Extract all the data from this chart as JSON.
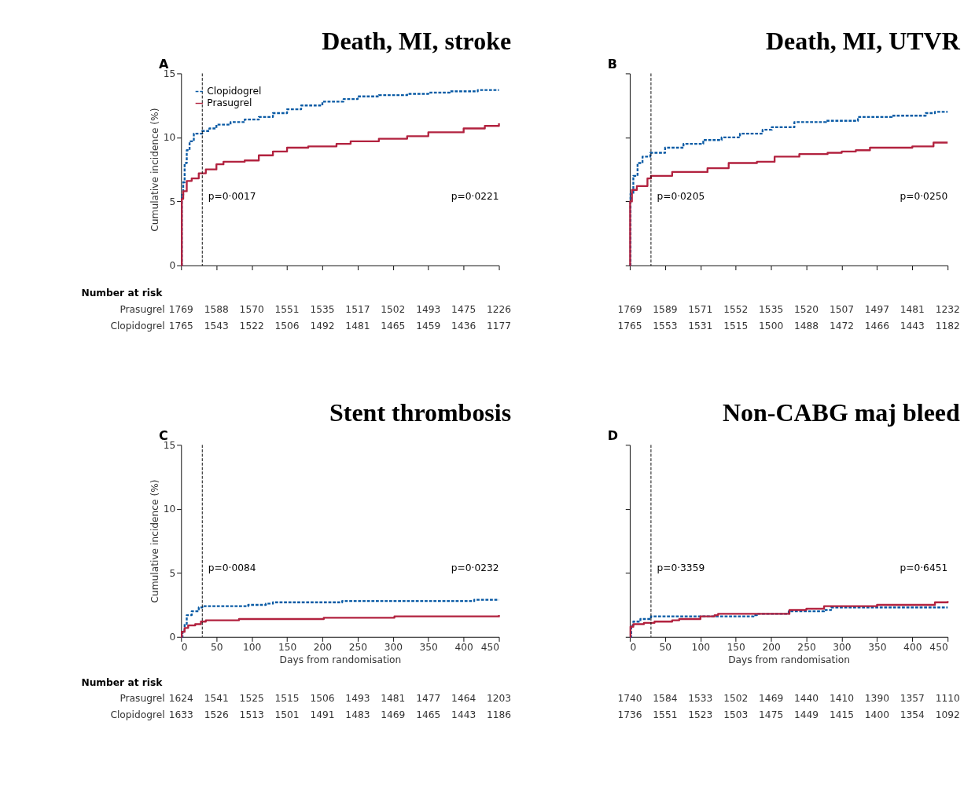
{
  "chart_data": [
    {
      "type": "step",
      "title": "Death, MI, stroke",
      "ylabel": "Cumulative incidence (%)",
      "xlim": [
        0,
        450
      ],
      "xticks": [
        0,
        50,
        100,
        150,
        200,
        250,
        300,
        350,
        400,
        450
      ],
      "ylim": [
        0,
        15
      ],
      "yticks": [
        0,
        5,
        10,
        15
      ],
      "tick_labels": "y",
      "legend": "top left",
      "grid": false,
      "ref_lines": [
        {
          "axis": "x",
          "value": 30,
          "line_style": "dashed",
          "color": "#000000"
        }
      ],
      "annotations": [
        "A",
        "p=0·0017",
        "p=0·0221",
        "Number at risk",
        "Prasugrel",
        "Clopidogrel",
        "1769",
        "1588",
        "1570",
        "1551",
        "1535",
        "1517",
        "1502",
        "1493",
        "1475",
        "1226",
        "1765",
        "1543",
        "1522",
        "1506",
        "1492",
        "1481",
        "1465",
        "1459",
        "1436",
        "1177"
      ],
      "series": [
        {
          "name": "Clopidogrel",
          "color": "#0a5ba5",
          "line_style": "dashed",
          "x": [
            0,
            1,
            3,
            5,
            8,
            12,
            18,
            30,
            40,
            50,
            70,
            90,
            110,
            130,
            150,
            170,
            200,
            230,
            250,
            280,
            320,
            350,
            380,
            420,
            450
          ],
          "values": [
            0,
            5.5,
            6.5,
            8,
            9,
            9.7,
            10.3,
            10.5,
            10.7,
            11,
            11.2,
            11.4,
            11.6,
            11.9,
            12.2,
            12.5,
            12.8,
            13,
            13.2,
            13.3,
            13.4,
            13.5,
            13.6,
            13.7,
            13.7
          ]
        },
        {
          "name": "Prasugrel",
          "color": "#b2223f",
          "line_style": "solid",
          "x": [
            0,
            1,
            3,
            8,
            15,
            25,
            35,
            50,
            60,
            90,
            110,
            130,
            150,
            180,
            220,
            240,
            280,
            320,
            350,
            400,
            430,
            450
          ],
          "values": [
            0,
            5.2,
            5.8,
            6.6,
            6.8,
            7.2,
            7.5,
            7.9,
            8.1,
            8.2,
            8.6,
            8.9,
            9.2,
            9.3,
            9.5,
            9.7,
            9.9,
            10.1,
            10.4,
            10.7,
            10.9,
            11.1
          ]
        }
      ]
    },
    {
      "type": "step",
      "title": "Death, MI, UTVR",
      "xlim": [
        0,
        450
      ],
      "xticks": [
        0,
        50,
        100,
        150,
        200,
        250,
        300,
        350,
        400,
        450
      ],
      "ylim": [
        0,
        15
      ],
      "yticks": [
        0,
        5,
        10,
        15
      ],
      "tick_labels": false,
      "grid": false,
      "ref_lines": [
        {
          "axis": "x",
          "value": 30,
          "line_style": "dashed",
          "color": "#000000"
        }
      ],
      "annotations": [
        "B",
        "p=0·0205",
        "p=0·0250",
        "1769",
        "1589",
        "1571",
        "1552",
        "1535",
        "1520",
        "1507",
        "1497",
        "1481",
        "1232",
        "1765",
        "1553",
        "1531",
        "1515",
        "1500",
        "1488",
        "1472",
        "1466",
        "1443",
        "1182"
      ],
      "series": [
        {
          "color": "#0a5ba5",
          "line_style": "dashed",
          "x": [
            0,
            1,
            5,
            11,
            18,
            29,
            50,
            76,
            104,
            130,
            156,
            188,
            201,
            233,
            278,
            323,
            371,
            419,
            432,
            450
          ],
          "values": [
            0,
            5.6,
            7.0,
            8.0,
            8.5,
            8.8,
            9.2,
            9.5,
            9.8,
            10.0,
            10.3,
            10.6,
            10.8,
            11.2,
            11.3,
            11.6,
            11.7,
            11.9,
            12.0,
            12.0
          ]
        },
        {
          "color": "#b2223f",
          "line_style": "solid",
          "x": [
            0,
            0.5,
            3,
            10,
            25,
            30,
            60,
            95,
            110,
            140,
            180,
            205,
            240,
            280,
            300,
            320,
            340,
            400,
            430,
            450
          ],
          "values": [
            0,
            5,
            5.9,
            6.2,
            6.8,
            7.0,
            7.3,
            7.3,
            7.6,
            8.0,
            8.1,
            8.5,
            8.7,
            8.8,
            8.9,
            9.0,
            9.2,
            9.3,
            9.6,
            9.6
          ]
        }
      ]
    },
    {
      "type": "step",
      "title": "Stent thrombosis",
      "ylabel": "Cumulative incidence (%)",
      "xlabel": "Days from randomisation",
      "xlim": [
        0,
        450
      ],
      "xticks": [
        0,
        50,
        100,
        150,
        200,
        250,
        300,
        350,
        400,
        450
      ],
      "ylim": [
        0,
        15
      ],
      "yticks": [
        0,
        5,
        10,
        15
      ],
      "grid": false,
      "ref_lines": [
        {
          "axis": "x",
          "value": 30,
          "line_style": "dashed",
          "color": "#000000"
        }
      ],
      "annotations": [
        "C",
        "p=0·0084",
        "p=0·0232",
        "Number at risk",
        "Prasugrel",
        "Clopidogrel",
        "1624",
        "1541",
        "1525",
        "1515",
        "1506",
        "1493",
        "1481",
        "1477",
        "1464",
        "1203",
        "1633",
        "1526",
        "1513",
        "1501",
        "1491",
        "1483",
        "1469",
        "1465",
        "1443",
        "1186"
      ],
      "series": [
        {
          "color": "#0a5ba5",
          "line_style": "dashed",
          "x": [
            0,
            2,
            5,
            8,
            15,
            25,
            30,
            90,
            95,
            120,
            130,
            225,
            228,
            410,
            415,
            450
          ],
          "values": [
            0,
            0.5,
            1,
            1.7,
            2,
            2.3,
            2.4,
            2.4,
            2.5,
            2.6,
            2.7,
            2.7,
            2.8,
            2.8,
            2.9,
            2.9
          ]
        },
        {
          "color": "#b2223f",
          "line_style": "solid",
          "x": [
            0,
            1,
            5,
            10,
            20,
            28,
            35,
            80,
            82,
            200,
            202,
            300,
            302,
            450
          ],
          "values": [
            0,
            0.4,
            0.7,
            0.9,
            1.0,
            1.2,
            1.3,
            1.3,
            1.4,
            1.4,
            1.5,
            1.5,
            1.6,
            1.7
          ]
        }
      ]
    },
    {
      "type": "step",
      "title": "Non-CABG maj bleed",
      "xlabel": "Days from randomisation",
      "xlim": [
        0,
        450
      ],
      "xticks": [
        0,
        50,
        100,
        150,
        200,
        250,
        300,
        350,
        400,
        450
      ],
      "ylim": [
        0,
        15
      ],
      "yticks": [
        0,
        5,
        10,
        15
      ],
      "tick_labels": "x",
      "grid": false,
      "ref_lines": [
        {
          "axis": "x",
          "value": 30,
          "line_style": "dashed",
          "color": "#000000"
        }
      ],
      "annotations": [
        "D",
        "p=0·3359",
        "p=0·6451",
        "1740",
        "1584",
        "1533",
        "1502",
        "1469",
        "1440",
        "1410",
        "1390",
        "1357",
        "1110",
        "1736",
        "1551",
        "1523",
        "1503",
        "1475",
        "1449",
        "1415",
        "1400",
        "1354",
        "1092"
      ],
      "series": [
        {
          "color": "#0a5ba5",
          "line_style": "dashed",
          "x": [
            0,
            2,
            5,
            15,
            30,
            100,
            175,
            180,
            225,
            275,
            285,
            450
          ],
          "values": [
            0,
            0.9,
            1.2,
            1.4,
            1.6,
            1.6,
            1.7,
            1.8,
            2.0,
            2.1,
            2.3,
            2.3
          ]
        },
        {
          "color": "#b2223f",
          "line_style": "solid",
          "x": [
            0,
            1,
            5,
            20,
            35,
            60,
            70,
            100,
            120,
            125,
            225,
            226,
            250,
            275,
            350,
            430,
            432,
            450
          ],
          "values": [
            0,
            0.8,
            1.0,
            1.1,
            1.2,
            1.3,
            1.4,
            1.6,
            1.7,
            1.8,
            1.8,
            2.1,
            2.2,
            2.4,
            2.5,
            2.5,
            2.7,
            2.8
          ]
        }
      ]
    }
  ]
}
